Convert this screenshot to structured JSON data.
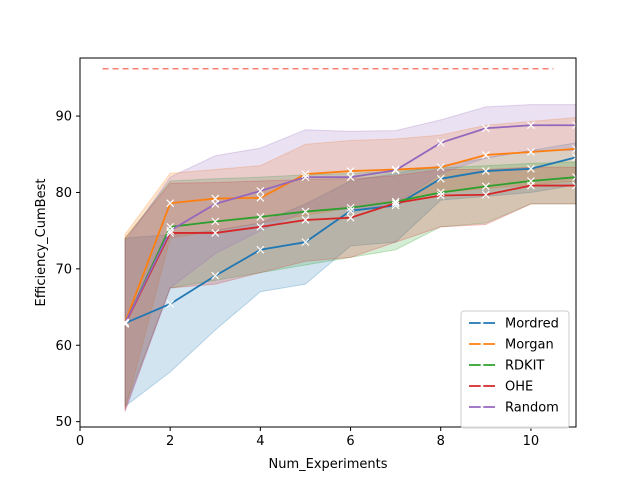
{
  "chart_data": {
    "type": "line",
    "title": "",
    "xlabel": "Num_Experiments",
    "ylabel": "Efficiency_CumBest",
    "xlim": [
      0,
      11
    ],
    "ylim": [
      49.3,
      97.6
    ],
    "xticks": [
      0,
      2,
      4,
      6,
      8,
      10
    ],
    "yticks": [
      50,
      60,
      70,
      80,
      90
    ],
    "grid": false,
    "legend_position": "lower-right",
    "x": [
      1,
      2,
      3,
      4,
      5,
      6,
      7,
      8,
      9,
      10,
      11
    ],
    "reference_line": {
      "y": 96.2,
      "x_range": [
        0.5,
        10.5
      ],
      "color": "#fa8072"
    },
    "series": [
      {
        "name": "Mordred",
        "color": "#1f77b4",
        "values": [
          62.9,
          65.4,
          69.1,
          72.5,
          73.5,
          77.6,
          78.3,
          81.8,
          82.8,
          83.1,
          84.6
        ],
        "lower": [
          52.0,
          56.5,
          62.0,
          67.0,
          68.0,
          73.0,
          73.5,
          79.0,
          79.5,
          80.0,
          81.0
        ],
        "upper": [
          74.0,
          74.5,
          75.0,
          76.0,
          78.5,
          81.5,
          82.5,
          83.5,
          84.5,
          85.5,
          86.5
        ]
      },
      {
        "name": "Morgan",
        "color": "#ff7f0e",
        "values": [
          63.0,
          78.6,
          79.2,
          79.3,
          82.4,
          82.8,
          83.0,
          83.3,
          84.9,
          85.3,
          85.7
        ],
        "lower": [
          51.5,
          74.0,
          75.0,
          76.0,
          77.0,
          78.0,
          79.0,
          80.0,
          80.5,
          81.0,
          81.5
        ],
        "upper": [
          74.5,
          82.5,
          83.0,
          83.5,
          86.3,
          86.8,
          87.0,
          87.5,
          88.8,
          89.3,
          89.8
        ]
      },
      {
        "name": "RDKIT",
        "color": "#2ca02c",
        "values": [
          62.8,
          75.5,
          76.2,
          76.8,
          77.5,
          78.0,
          78.8,
          80.0,
          80.8,
          81.5,
          82.0
        ],
        "lower": [
          52.0,
          67.5,
          68.5,
          69.5,
          70.5,
          71.5,
          72.5,
          75.5,
          76.0,
          78.5,
          78.5
        ],
        "upper": [
          74.0,
          81.5,
          81.8,
          82.0,
          82.3,
          82.5,
          82.8,
          83.2,
          83.5,
          83.8,
          84.0
        ]
      },
      {
        "name": "OHE",
        "color": "#d62728",
        "values": [
          62.8,
          74.7,
          74.7,
          75.5,
          76.4,
          76.7,
          78.6,
          79.6,
          79.7,
          80.9,
          80.9
        ],
        "lower": [
          51.5,
          67.5,
          68.0,
          69.5,
          71.0,
          71.5,
          73.5,
          75.5,
          75.8,
          78.5,
          78.5
        ],
        "upper": [
          74.0,
          81.2,
          81.3,
          81.5,
          81.7,
          81.8,
          82.2,
          83.0,
          83.0,
          83.3,
          83.3
        ]
      },
      {
        "name": "Random",
        "color": "#9467bd",
        "values": [
          62.9,
          75.0,
          78.5,
          80.2,
          82.0,
          82.0,
          82.9,
          86.5,
          88.4,
          88.8,
          88.8
        ],
        "lower": [
          51.3,
          67.5,
          72.0,
          75.0,
          77.5,
          77.8,
          78.5,
          82.5,
          84.5,
          85.5,
          85.5
        ],
        "upper": [
          73.5,
          82.0,
          84.8,
          85.8,
          88.2,
          88.0,
          88.1,
          89.5,
          91.2,
          91.5,
          91.5
        ]
      }
    ]
  }
}
